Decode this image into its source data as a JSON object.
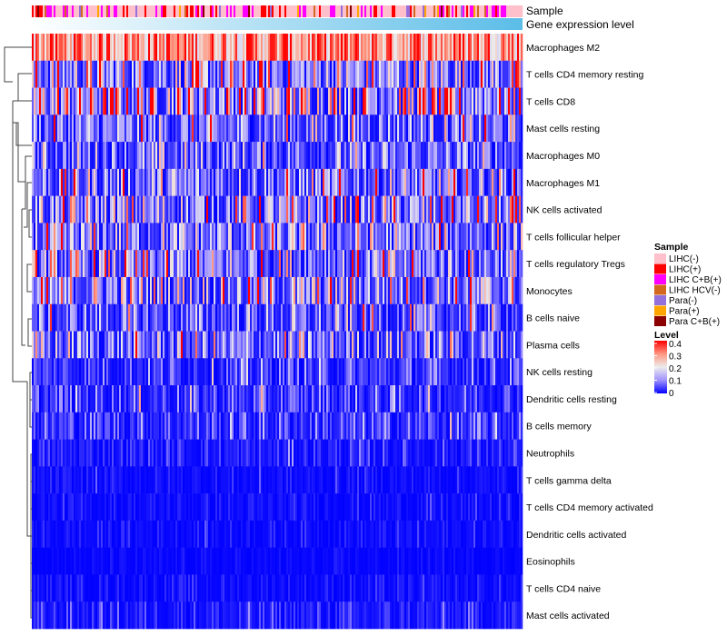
{
  "chart_data": {
    "type": "heatmap",
    "annotation_labels": [
      "Sample",
      "Gene expression level"
    ],
    "rows": [
      "Macrophages M2",
      "T cells CD4 memory resting",
      "T cells CD8",
      "Mast cells resting",
      "Macrophages M0",
      "Macrophages M1",
      "NK cells activated",
      "T cells follicular helper",
      "T cells regulatory  Tregs",
      "Monocytes",
      "B cells naive",
      "Plasma cells",
      "NK cells resting",
      "Dendritic cells resting",
      "B cells memory",
      "Neutrophils",
      "T cells gamma delta",
      "T cells CD4 memory activated",
      "Dendritic cells activated",
      "Eosinophils",
      "T cells CD4 naive",
      "Mast cells activated"
    ],
    "row_mean_level": [
      0.3,
      0.12,
      0.17,
      0.08,
      0.07,
      0.09,
      0.1,
      0.09,
      0.1,
      0.11,
      0.06,
      0.08,
      0.04,
      0.04,
      0.04,
      0.02,
      0.01,
      0.01,
      0.01,
      0.005,
      0.01,
      0.02
    ],
    "n_columns": 270,
    "sample_legend": {
      "title": "Sample",
      "items": [
        {
          "label": "LIHC(-)",
          "color": "#ffc0cb",
          "share": 0.6
        },
        {
          "label": "LIHC(+)",
          "color": "#ff0000",
          "share": 0.1
        },
        {
          "label": "LIHC C+B(+)",
          "color": "#ff00ff",
          "share": 0.17
        },
        {
          "label": "LIHC HCV(-)",
          "color": "#d2691e",
          "share": 0.04
        },
        {
          "label": "Para(-)",
          "color": "#9370db",
          "share": 0.04
        },
        {
          "label": "Para(+)",
          "color": "#ffa500",
          "share": 0.03
        },
        {
          "label": "Para C+B(+)",
          "color": "#8b0000",
          "share": 0.02
        }
      ]
    },
    "level_legend": {
      "title": "Level",
      "ticks": [
        "0.4",
        "0.3",
        "0.2",
        "0.1",
        "0"
      ],
      "range": [
        0,
        0.4
      ],
      "stops": [
        {
          "v": 0,
          "c": "#0000ff"
        },
        {
          "v": 0.1,
          "c": "#a092ff"
        },
        {
          "v": 0.2,
          "c": "#ececec"
        },
        {
          "v": 0.3,
          "c": "#ff9680"
        },
        {
          "v": 0.4,
          "c": "#ff0000"
        }
      ]
    },
    "gene_expression_gradient": [
      "#ffffff",
      "#5bbde8"
    ]
  }
}
